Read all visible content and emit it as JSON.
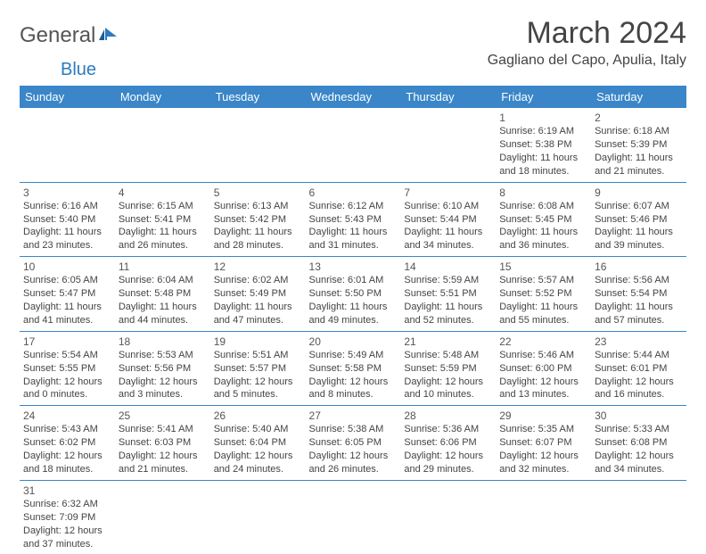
{
  "brand": {
    "part1": "General",
    "part2": "Blue"
  },
  "title": "March 2024",
  "location": "Gagliano del Capo, Apulia, Italy",
  "colors": {
    "header_bg": "#3a86c8",
    "header_fg": "#ffffff",
    "border": "#3a86c8",
    "text": "#444444",
    "logo_blue": "#2b7bbf"
  },
  "weekdays": [
    "Sunday",
    "Monday",
    "Tuesday",
    "Wednesday",
    "Thursday",
    "Friday",
    "Saturday"
  ],
  "weeks": [
    [
      null,
      null,
      null,
      null,
      null,
      {
        "d": "1",
        "sr": "6:19 AM",
        "ss": "5:38 PM",
        "dl": "11 hours and 18 minutes."
      },
      {
        "d": "2",
        "sr": "6:18 AM",
        "ss": "5:39 PM",
        "dl": "11 hours and 21 minutes."
      }
    ],
    [
      {
        "d": "3",
        "sr": "6:16 AM",
        "ss": "5:40 PM",
        "dl": "11 hours and 23 minutes."
      },
      {
        "d": "4",
        "sr": "6:15 AM",
        "ss": "5:41 PM",
        "dl": "11 hours and 26 minutes."
      },
      {
        "d": "5",
        "sr": "6:13 AM",
        "ss": "5:42 PM",
        "dl": "11 hours and 28 minutes."
      },
      {
        "d": "6",
        "sr": "6:12 AM",
        "ss": "5:43 PM",
        "dl": "11 hours and 31 minutes."
      },
      {
        "d": "7",
        "sr": "6:10 AM",
        "ss": "5:44 PM",
        "dl": "11 hours and 34 minutes."
      },
      {
        "d": "8",
        "sr": "6:08 AM",
        "ss": "5:45 PM",
        "dl": "11 hours and 36 minutes."
      },
      {
        "d": "9",
        "sr": "6:07 AM",
        "ss": "5:46 PM",
        "dl": "11 hours and 39 minutes."
      }
    ],
    [
      {
        "d": "10",
        "sr": "6:05 AM",
        "ss": "5:47 PM",
        "dl": "11 hours and 41 minutes."
      },
      {
        "d": "11",
        "sr": "6:04 AM",
        "ss": "5:48 PM",
        "dl": "11 hours and 44 minutes."
      },
      {
        "d": "12",
        "sr": "6:02 AM",
        "ss": "5:49 PM",
        "dl": "11 hours and 47 minutes."
      },
      {
        "d": "13",
        "sr": "6:01 AM",
        "ss": "5:50 PM",
        "dl": "11 hours and 49 minutes."
      },
      {
        "d": "14",
        "sr": "5:59 AM",
        "ss": "5:51 PM",
        "dl": "11 hours and 52 minutes."
      },
      {
        "d": "15",
        "sr": "5:57 AM",
        "ss": "5:52 PM",
        "dl": "11 hours and 55 minutes."
      },
      {
        "d": "16",
        "sr": "5:56 AM",
        "ss": "5:54 PM",
        "dl": "11 hours and 57 minutes."
      }
    ],
    [
      {
        "d": "17",
        "sr": "5:54 AM",
        "ss": "5:55 PM",
        "dl": "12 hours and 0 minutes."
      },
      {
        "d": "18",
        "sr": "5:53 AM",
        "ss": "5:56 PM",
        "dl": "12 hours and 3 minutes."
      },
      {
        "d": "19",
        "sr": "5:51 AM",
        "ss": "5:57 PM",
        "dl": "12 hours and 5 minutes."
      },
      {
        "d": "20",
        "sr": "5:49 AM",
        "ss": "5:58 PM",
        "dl": "12 hours and 8 minutes."
      },
      {
        "d": "21",
        "sr": "5:48 AM",
        "ss": "5:59 PM",
        "dl": "12 hours and 10 minutes."
      },
      {
        "d": "22",
        "sr": "5:46 AM",
        "ss": "6:00 PM",
        "dl": "12 hours and 13 minutes."
      },
      {
        "d": "23",
        "sr": "5:44 AM",
        "ss": "6:01 PM",
        "dl": "12 hours and 16 minutes."
      }
    ],
    [
      {
        "d": "24",
        "sr": "5:43 AM",
        "ss": "6:02 PM",
        "dl": "12 hours and 18 minutes."
      },
      {
        "d": "25",
        "sr": "5:41 AM",
        "ss": "6:03 PM",
        "dl": "12 hours and 21 minutes."
      },
      {
        "d": "26",
        "sr": "5:40 AM",
        "ss": "6:04 PM",
        "dl": "12 hours and 24 minutes."
      },
      {
        "d": "27",
        "sr": "5:38 AM",
        "ss": "6:05 PM",
        "dl": "12 hours and 26 minutes."
      },
      {
        "d": "28",
        "sr": "5:36 AM",
        "ss": "6:06 PM",
        "dl": "12 hours and 29 minutes."
      },
      {
        "d": "29",
        "sr": "5:35 AM",
        "ss": "6:07 PM",
        "dl": "12 hours and 32 minutes."
      },
      {
        "d": "30",
        "sr": "5:33 AM",
        "ss": "6:08 PM",
        "dl": "12 hours and 34 minutes."
      }
    ],
    [
      {
        "d": "31",
        "sr": "6:32 AM",
        "ss": "7:09 PM",
        "dl": "12 hours and 37 minutes."
      },
      null,
      null,
      null,
      null,
      null,
      null
    ]
  ],
  "labels": {
    "sunrise": "Sunrise: ",
    "sunset": "Sunset: ",
    "daylight": "Daylight: "
  }
}
